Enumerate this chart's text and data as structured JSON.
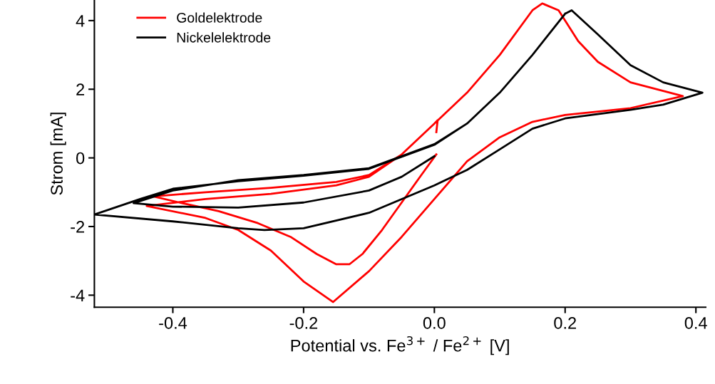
{
  "chart_data": {
    "type": "line",
    "xlabel": "Potential vs. Fe$^{3+}$ / Fe$^{2+}$ [V]",
    "ylabel": "Strom [mA]",
    "xlim": [
      -0.52,
      0.415
    ],
    "ylim": [
      -4.35,
      4.6
    ],
    "xticks": [
      {
        "value": -0.4,
        "label": "-0.4"
      },
      {
        "value": -0.2,
        "label": "-0.2"
      },
      {
        "value": 0.0,
        "label": "0.0"
      },
      {
        "value": 0.2,
        "label": "0.2"
      },
      {
        "value": 0.4,
        "label": "0.4"
      }
    ],
    "yticks": [
      {
        "value": -4,
        "label": "-4"
      },
      {
        "value": -2,
        "label": "-2"
      },
      0,
      2,
      4
    ],
    "grid": false,
    "legend": "top left",
    "marker": "none",
    "line_style": "solid",
    "series": [
      {
        "name": "Goldelektrode",
        "color": "#ff0000",
        "x": [
          0.003,
          -0.02,
          -0.05,
          -0.08,
          -0.11,
          -0.13,
          -0.15,
          -0.18,
          -0.22,
          -0.27,
          -0.33,
          -0.39,
          -0.43,
          -0.35,
          -0.25,
          -0.15,
          -0.1,
          -0.05,
          0.0,
          0.05,
          0.1,
          0.15,
          0.165,
          0.19,
          0.22,
          0.25,
          0.3,
          0.35,
          0.38,
          0.3,
          0.2,
          0.15,
          0.1,
          0.05,
          0.0,
          -0.05,
          -0.1,
          -0.155,
          -0.2,
          -0.25,
          -0.3,
          -0.35,
          -0.44,
          -0.35,
          -0.25,
          -0.15,
          -0.1,
          -0.05,
          0.0,
          0.005,
          0.003
        ],
        "values": [
          0.1,
          -0.5,
          -1.3,
          -2.1,
          -2.8,
          -3.1,
          -3.1,
          -2.8,
          -2.3,
          -1.9,
          -1.55,
          -1.3,
          -1.12,
          -1.0,
          -0.87,
          -0.7,
          -0.5,
          0.1,
          1.0,
          1.9,
          3.0,
          4.3,
          4.5,
          4.3,
          3.4,
          2.8,
          2.2,
          1.95,
          1.8,
          1.45,
          1.25,
          1.05,
          0.6,
          -0.1,
          -1.2,
          -2.3,
          -3.3,
          -4.2,
          -3.6,
          -2.7,
          -2.1,
          -1.75,
          -1.4,
          -1.2,
          -1.05,
          -0.8,
          -0.55,
          0.1,
          1.0,
          1.1,
          0.75
        ]
      },
      {
        "name": "Nickelelektrode",
        "color": "#000000",
        "x": [
          0.0,
          -0.05,
          -0.1,
          -0.2,
          -0.3,
          -0.4,
          -0.46,
          -0.4,
          -0.3,
          -0.2,
          -0.1,
          0.0,
          0.05,
          0.1,
          0.15,
          0.2,
          0.21,
          0.25,
          0.3,
          0.35,
          0.41,
          0.35,
          0.3,
          0.2,
          0.15,
          0.1,
          0.05,
          0.0,
          -0.05,
          -0.1,
          -0.2,
          -0.26,
          -0.3,
          -0.4,
          -0.52,
          -0.45,
          -0.4,
          -0.3,
          -0.2,
          -0.1,
          0.0,
          0.05,
          0.1,
          0.15,
          0.2
        ],
        "values": [
          0.05,
          -0.55,
          -0.95,
          -1.3,
          -1.45,
          -1.42,
          -1.32,
          -0.95,
          -0.65,
          -0.5,
          -0.3,
          0.4,
          1.0,
          1.9,
          3.0,
          4.2,
          4.3,
          3.6,
          2.7,
          2.2,
          1.9,
          1.55,
          1.4,
          1.15,
          0.85,
          0.25,
          -0.35,
          -0.8,
          -1.2,
          -1.6,
          -2.05,
          -2.1,
          -2.05,
          -1.85,
          -1.65,
          -1.2,
          -0.9,
          -0.68,
          -0.52,
          -0.32,
          0.38,
          1.0,
          1.9,
          3.0,
          4.2
        ]
      }
    ]
  }
}
